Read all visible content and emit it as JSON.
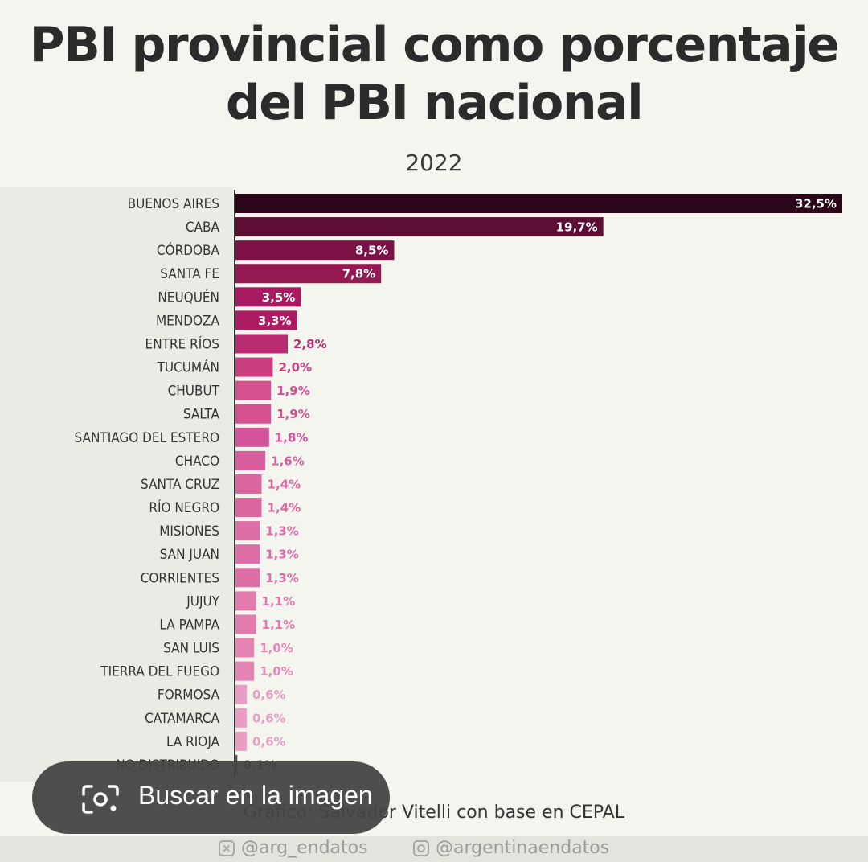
{
  "chart_data": {
    "type": "bar",
    "orientation": "horizontal",
    "title_lines": [
      "PBI provincial como porcentaje",
      "del PBI nacional"
    ],
    "subtitle": "2022",
    "categories": [
      "BUENOS AIRES",
      "CABA",
      "CÓRDOBA",
      "SANTA FE",
      "NEUQUÉN",
      "MENDOZA",
      "ENTRE RÍOS",
      "TUCUMÁN",
      "CHUBUT",
      "SALTA",
      "SANTIAGO DEL ESTERO",
      "CHACO",
      "SANTA CRUZ",
      "RÍO NEGRO",
      "MISIONES",
      "SAN JUAN",
      "CORRIENTES",
      "JUJUY",
      "LA PAMPA",
      "SAN LUIS",
      "TIERRA DEL FUEGO",
      "FORMOSA",
      "CATAMARCA",
      "LA RIOJA",
      "NO DISTRIBUIDO"
    ],
    "values": [
      32.5,
      19.7,
      8.5,
      7.8,
      3.5,
      3.3,
      2.8,
      2.0,
      1.9,
      1.9,
      1.8,
      1.6,
      1.4,
      1.4,
      1.3,
      1.3,
      1.3,
      1.1,
      1.1,
      1.0,
      1.0,
      0.6,
      0.6,
      0.6,
      0.1
    ],
    "value_labels": [
      "32,5%",
      "19,7%",
      "8,5%",
      "7,8%",
      "3,5%",
      "3,3%",
      "2,8%",
      "2,0%",
      "1,9%",
      "1,9%",
      "1,8%",
      "1,6%",
      "1,4%",
      "1,4%",
      "1,3%",
      "1,3%",
      "1,3%",
      "1,1%",
      "1,1%",
      "1,0%",
      "1,0%",
      "0,6%",
      "0,6%",
      "0,6%",
      "0,1%"
    ],
    "colors": [
      "#2b0618",
      "#5e0d35",
      "#7c1145",
      "#941852",
      "#a9195f",
      "#ad1b62",
      "#b82b70",
      "#cb3f81",
      "#d4508f",
      "#d4508f",
      "#d5559a",
      "#d75d9c",
      "#da66a0",
      "#da66a0",
      "#de6ea6",
      "#de6ea6",
      "#de6ea6",
      "#e27aad",
      "#e27aad",
      "#e684b4",
      "#e684b4",
      "#ea9cc2",
      "#ea9cc2",
      "#ea9cc2",
      "#555555"
    ],
    "xlim": [
      0,
      32.5
    ],
    "grid": false,
    "legend": "none"
  },
  "credit": "Gráfico: Salvador Vitelli con base en CEPAL",
  "handles": {
    "x": "@arg_endatos",
    "instagram": "@argentinaendatos"
  },
  "overlay": {
    "search_label": "Buscar en la imagen",
    "icon": "lens-camera-icon"
  }
}
